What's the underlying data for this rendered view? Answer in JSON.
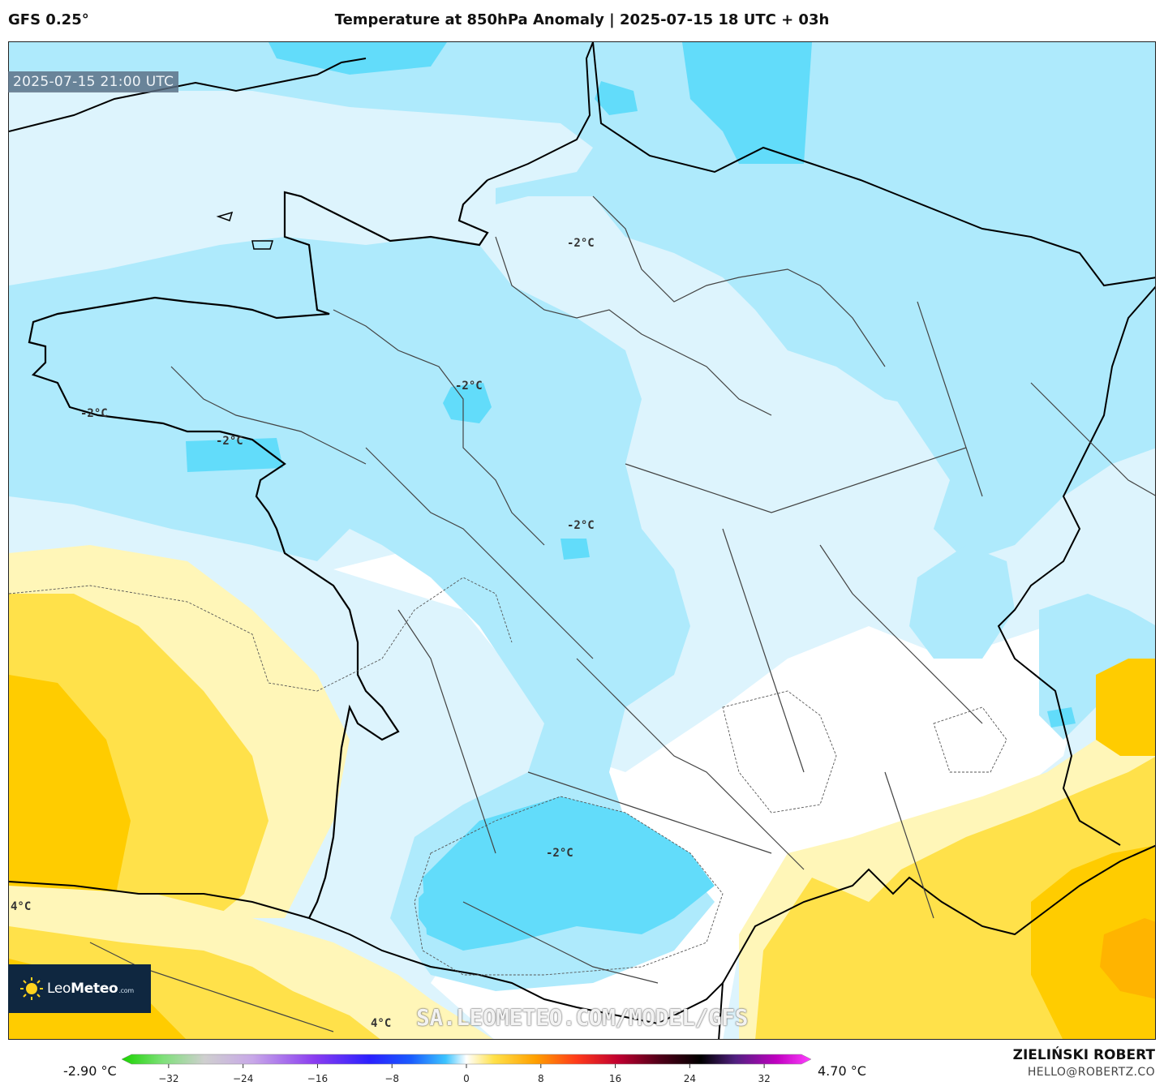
{
  "header": {
    "model": "GFS 0.25°",
    "title": "Temperature at 850hPa Anomaly | 2025-07-15 18 UTC + 03h"
  },
  "map": {
    "valid_time": "2025-07-15 21:00 UTC",
    "region": "France",
    "contour_labels": [
      "-2°C",
      "-2°C",
      "-2°C",
      "-2°C",
      "-2°C",
      "-2°C",
      "4°C",
      "4°C"
    ],
    "colors": {
      "neg_1": "#ddf4fd",
      "neg_2": "#aeeafc",
      "neg_3": "#62dcfa",
      "pos_1": "#fff6b8",
      "pos_2": "#ffe14a",
      "pos_3": "#ffcc00",
      "pos_4": "#ffb400"
    }
  },
  "logo": {
    "brand_bold": "Leo",
    "brand": "Meteo",
    "suffix": ".com"
  },
  "watermark": "SA.LEOMETEO.COM/MODEL/GFS",
  "colorbar": {
    "min_label": "-2.90 °C",
    "max_label": "4.70 °C",
    "ticks": [
      "−32",
      "−24",
      "−16",
      "−8",
      "0",
      "8",
      "16",
      "24",
      "32"
    ],
    "tick_values": [
      -32,
      -24,
      -16,
      -8,
      0,
      8,
      16,
      24,
      32
    ],
    "range": [
      -36,
      36
    ]
  },
  "footer": {
    "author": "ZIELIŃSKI ROBERT",
    "email": "HELLO@ROBERTZ.CO"
  }
}
